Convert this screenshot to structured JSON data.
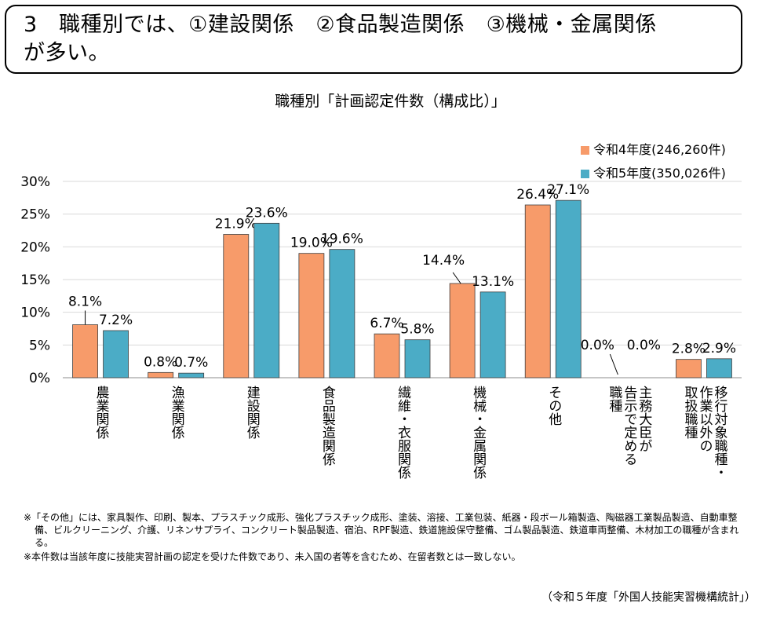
{
  "headline": {
    "line1": "3　職種別では、①建設関係　②食品製造関係　③機械・金属関係",
    "line2": "が多い。"
  },
  "chart_data": {
    "type": "bar",
    "title": "職種別「計画認定件数（構成比）」",
    "categories": [
      "農業関係",
      "漁業関係",
      "建設関係",
      "食品製造関係",
      "繊維・衣服関係",
      "機械・金属関係",
      "その他",
      "主務大臣が告示で定める職種",
      "移行対象職種・作業以外の取扱職種"
    ],
    "category_lines": [
      [
        "農業関係"
      ],
      [
        "漁業関係"
      ],
      [
        "建設関係"
      ],
      [
        "食品製造関係"
      ],
      [
        "繊維・衣服関係"
      ],
      [
        "機械・金属関係"
      ],
      [
        "その他"
      ],
      [
        "主務大臣が",
        "告示で定める",
        "職種"
      ],
      [
        "移行対象職種・",
        "作業以外の",
        "取扱職種"
      ]
    ],
    "series": [
      {
        "name": "令和4年度(246,260件)",
        "color": "#F79B6A",
        "values": [
          8.1,
          0.8,
          21.9,
          19.0,
          6.7,
          14.4,
          26.4,
          0.0,
          2.8
        ],
        "labels": [
          "8.1%",
          "0.8%",
          "21.9%",
          "19.0%",
          "6.7%",
          "14.4%",
          "26.4%",
          "0.0%",
          "2.8%"
        ]
      },
      {
        "name": "令和5年度(350,026件)",
        "color": "#4BACC6",
        "values": [
          7.2,
          0.7,
          23.6,
          19.6,
          5.8,
          13.1,
          27.1,
          0.0,
          2.9
        ],
        "labels": [
          "7.2%",
          "0.7%",
          "23.6%",
          "19.6%",
          "5.8%",
          "13.1%",
          "27.1%",
          "0.0%",
          "2.9%"
        ]
      }
    ],
    "ylim": [
      0,
      30
    ],
    "yticks": [
      0,
      5,
      10,
      15,
      20,
      25,
      30
    ],
    "ytick_labels": [
      "0%",
      "5%",
      "10%",
      "15%",
      "20%",
      "25%",
      "30%"
    ],
    "grid": true,
    "legend": "top-right"
  },
  "notes": [
    "※「その他」には、家具製作、印刷、製本、プラスチック成形、強化プラスチック成形、塗装、溶接、工業包装、紙器・段ボール箱製造、陶磁器工業製品製造、自動車整備、ビルクリーニング、介護、リネンサプライ、コンクリート製品製造、宿泊、RPF製造、鉄道施設保守整備、ゴム製品製造、鉄道車両整備、木材加工の職種が含まれる。",
    "※本件数は当該年度に技能実習計画の認定を受けた件数であり、未入国の者等を含むため、在留者数とは一致しない。"
  ],
  "source": "（令和５年度「外国人技能実習機構統計」）"
}
